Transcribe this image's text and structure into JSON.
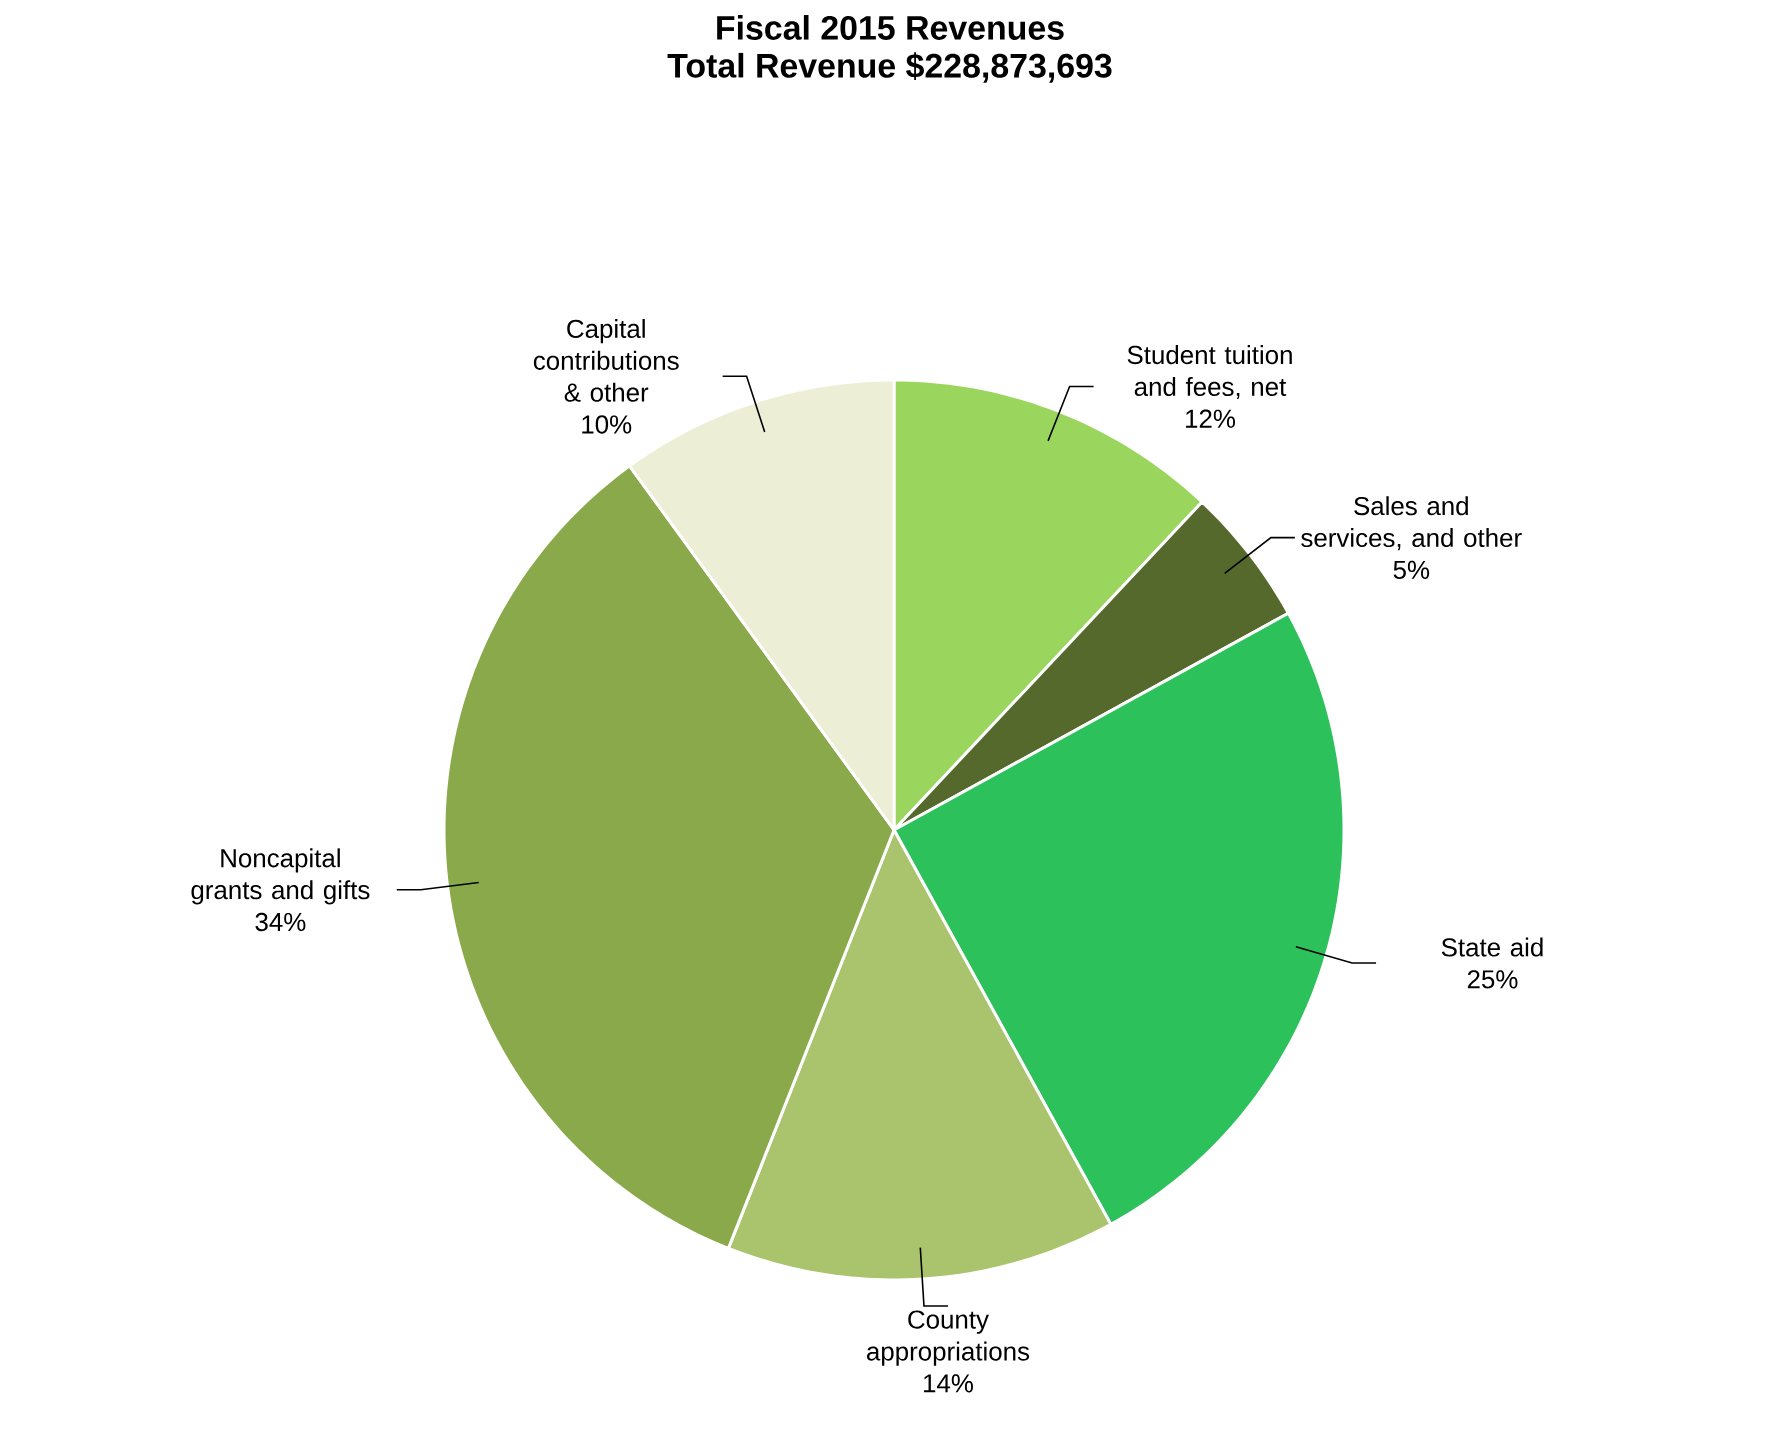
{
  "chart_data": {
    "type": "pie",
    "title": "Fiscal 2015 Revenues",
    "subtitle": "Total Revenue $228,873,693",
    "categories": [
      "Student tuition and fees, net",
      "Sales and services, and other",
      "State aid",
      "County appropriations",
      "Noncapital grants and gifts",
      "Capital contributions & other"
    ],
    "values": [
      12,
      5,
      25,
      14,
      34,
      10
    ],
    "colors": [
      "#9ad65e",
      "#55692c",
      "#2dc15c",
      "#a9c46c",
      "#8aa94b",
      "#eceed6"
    ],
    "value_labels": [
      "12%",
      "5%",
      "25%",
      "14%",
      "34%",
      "10%"
    ]
  }
}
